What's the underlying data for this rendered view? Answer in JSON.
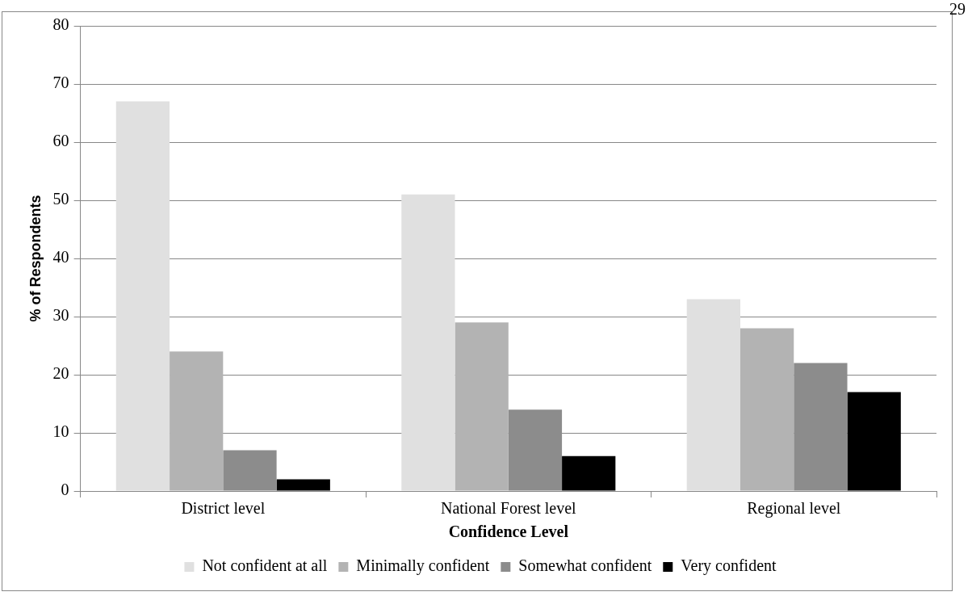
{
  "chart_data": {
    "type": "bar",
    "xlabel": "Confidence Level",
    "ylabel": "% of Respondents",
    "categories": [
      "District level",
      "National Forest level",
      "Regional level"
    ],
    "series": [
      {
        "name": "Not confident at all",
        "color": "#e0e0e0",
        "values": [
          67,
          51,
          33
        ]
      },
      {
        "name": "Minimally confident",
        "color": "#b3b3b3",
        "values": [
          24,
          29,
          28
        ]
      },
      {
        "name": "Somewhat confident",
        "color": "#8c8c8c",
        "values": [
          7,
          14,
          22
        ]
      },
      {
        "name": "Very confident",
        "color": "#000000",
        "values": [
          2,
          6,
          17
        ]
      }
    ],
    "ylim": [
      0,
      80
    ],
    "yticks": [
      0,
      10,
      20,
      30,
      40,
      50,
      60,
      70,
      80
    ],
    "grid": "y",
    "legend": "bottom",
    "annotations": [
      "29"
    ]
  }
}
